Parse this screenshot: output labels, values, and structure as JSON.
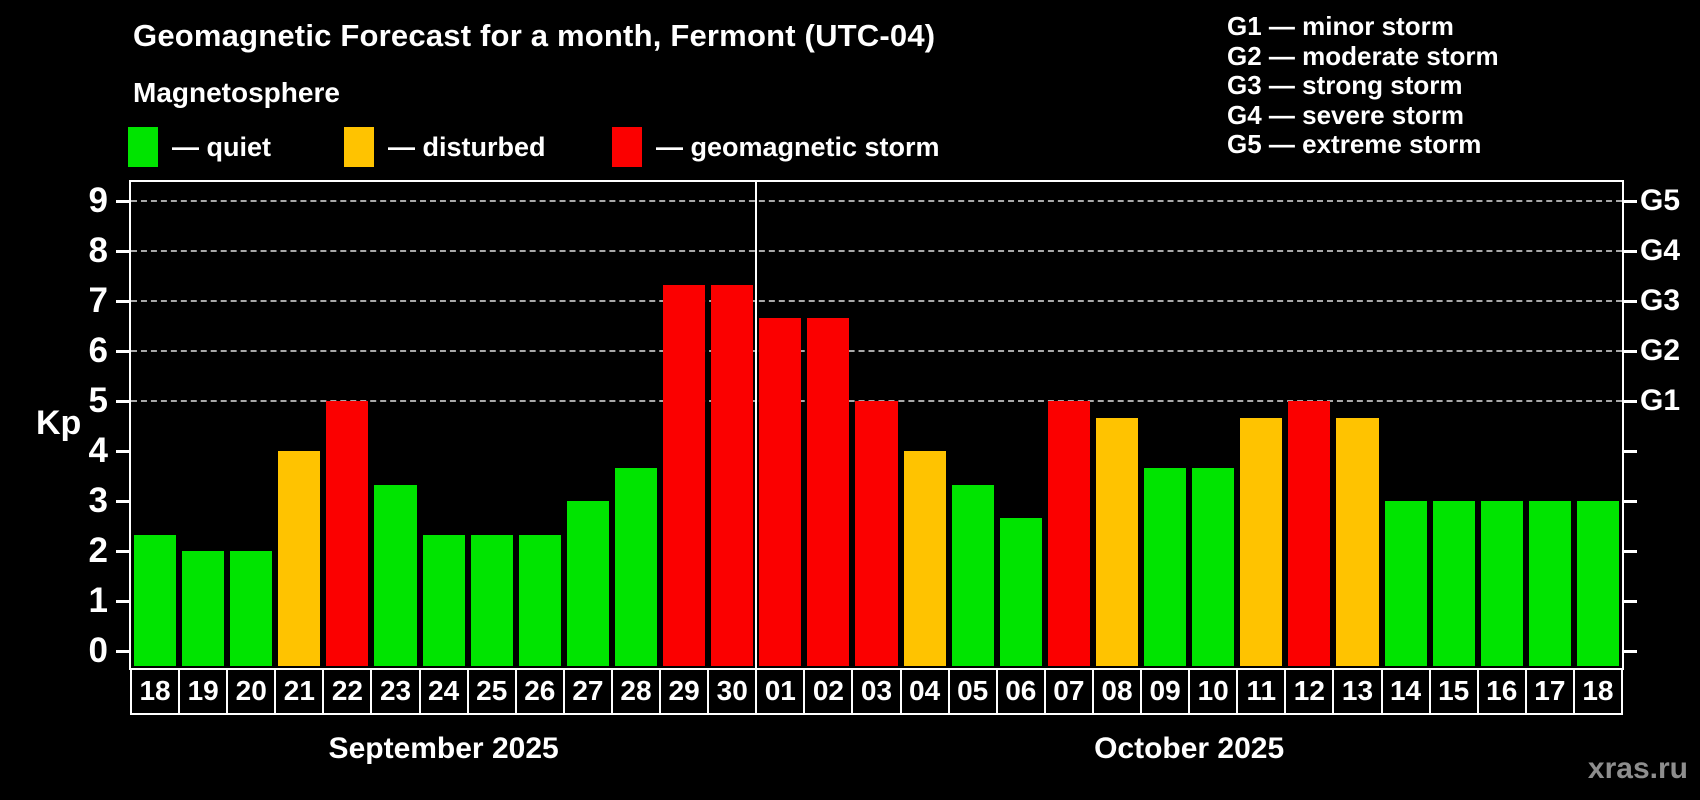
{
  "header": {
    "title": "Geomagnetic Forecast for a month, Fermont (UTC-04)",
    "subtitle": "Magnetosphere"
  },
  "legend": {
    "items": [
      {
        "label": "— quiet",
        "status": "quiet"
      },
      {
        "label": "— disturbed",
        "status": "disturbed"
      },
      {
        "label": "— geomagnetic storm",
        "status": "storm"
      }
    ]
  },
  "g_scale_legend": [
    "G1 — minor storm",
    "G2 — moderate storm",
    "G3 — strong storm",
    "G4 — severe storm",
    "G5 — extreme storm"
  ],
  "colors": {
    "quiet": "#00e400",
    "disturbed": "#ffc300",
    "storm": "#fb0000",
    "grid": "#a8a8a8",
    "watermark": "#8e8e8e"
  },
  "watermark": "xras.ru",
  "chart_data": {
    "type": "bar",
    "title": "Geomagnetic Forecast for a month, Fermont (UTC-04)",
    "ylabel": "Kp",
    "y_ticks": [
      0,
      1,
      2,
      3,
      4,
      5,
      6,
      7,
      8,
      9
    ],
    "ylim": [
      -0.35,
      9.4
    ],
    "grid": "dashed horizontal at Kp 5-9 only",
    "gridlines_at": [
      5,
      6,
      7,
      8,
      9
    ],
    "right_axis_labels": [
      {
        "kp": 5,
        "label": "G1"
      },
      {
        "kp": 6,
        "label": "G2"
      },
      {
        "kp": 7,
        "label": "G3"
      },
      {
        "kp": 8,
        "label": "G4"
      },
      {
        "kp": 9,
        "label": "G5"
      }
    ],
    "months": [
      {
        "label": "September 2025",
        "days": [
          {
            "day": "18",
            "kp": 2.33,
            "status": "quiet"
          },
          {
            "day": "19",
            "kp": 2.0,
            "status": "quiet"
          },
          {
            "day": "20",
            "kp": 2.0,
            "status": "quiet"
          },
          {
            "day": "21",
            "kp": 4.0,
            "status": "disturbed"
          },
          {
            "day": "22",
            "kp": 5.0,
            "status": "storm"
          },
          {
            "day": "23",
            "kp": 3.33,
            "status": "quiet"
          },
          {
            "day": "24",
            "kp": 2.33,
            "status": "quiet"
          },
          {
            "day": "25",
            "kp": 2.33,
            "status": "quiet"
          },
          {
            "day": "26",
            "kp": 2.33,
            "status": "quiet"
          },
          {
            "day": "27",
            "kp": 3.0,
            "status": "quiet"
          },
          {
            "day": "28",
            "kp": 3.67,
            "status": "quiet"
          },
          {
            "day": "29",
            "kp": 7.33,
            "status": "storm"
          },
          {
            "day": "30",
            "kp": 7.33,
            "status": "storm"
          }
        ]
      },
      {
        "label": "October 2025",
        "days": [
          {
            "day": "01",
            "kp": 6.67,
            "status": "storm"
          },
          {
            "day": "02",
            "kp": 6.67,
            "status": "storm"
          },
          {
            "day": "03",
            "kp": 5.0,
            "status": "storm"
          },
          {
            "day": "04",
            "kp": 4.0,
            "status": "disturbed"
          },
          {
            "day": "05",
            "kp": 3.33,
            "status": "quiet"
          },
          {
            "day": "06",
            "kp": 2.67,
            "status": "quiet"
          },
          {
            "day": "07",
            "kp": 5.0,
            "status": "storm"
          },
          {
            "day": "08",
            "kp": 4.67,
            "status": "disturbed"
          },
          {
            "day": "09",
            "kp": 3.67,
            "status": "quiet"
          },
          {
            "day": "10",
            "kp": 3.67,
            "status": "quiet"
          },
          {
            "day": "11",
            "kp": 4.67,
            "status": "disturbed"
          },
          {
            "day": "12",
            "kp": 5.0,
            "status": "storm"
          },
          {
            "day": "13",
            "kp": 4.67,
            "status": "disturbed"
          },
          {
            "day": "14",
            "kp": 3.0,
            "status": "quiet"
          },
          {
            "day": "15",
            "kp": 3.0,
            "status": "quiet"
          },
          {
            "day": "16",
            "kp": 3.0,
            "status": "quiet"
          },
          {
            "day": "17",
            "kp": 3.0,
            "status": "quiet"
          },
          {
            "day": "18",
            "kp": 3.0,
            "status": "quiet"
          }
        ]
      }
    ]
  }
}
